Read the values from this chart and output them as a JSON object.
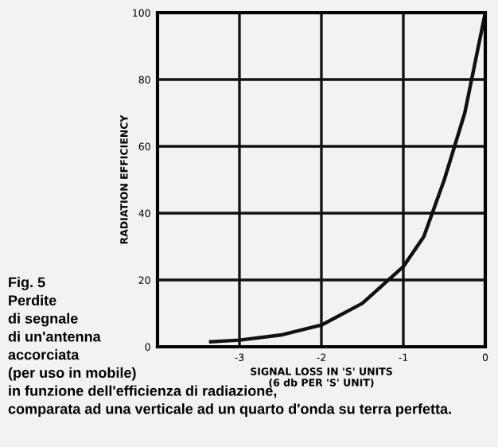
{
  "chart_data": {
    "type": "line",
    "xlabel": "SIGNAL LOSS IN 'S' UNITS\n(6 db PER 'S' UNIT)",
    "ylabel": "RADIATION EFFICIENCY",
    "x": [
      -3.35,
      -3,
      -2.5,
      -2,
      -1.5,
      -1,
      -0.75,
      -0.5,
      -0.25,
      0
    ],
    "series": [
      {
        "color": "#111111",
        "values": [
          1.5,
          2,
          3.5,
          6.5,
          13,
          24,
          33,
          50,
          70,
          100
        ]
      }
    ],
    "xlim": [
      -4,
      0
    ],
    "xticks": [
      {
        "value": -4,
        "label": null
      },
      -3,
      -2,
      -1,
      0
    ],
    "ylim": [
      0,
      100
    ],
    "yticks": [
      0,
      20,
      40,
      60,
      80,
      100
    ],
    "grid": true,
    "marker": "none",
    "line_style": "solid",
    "annotations": [
      "Fig. 5\nPerdite\ndi segnale\ndi un'antenna\naccorciata\n(per uso in mobile)\nin funzione dell'efficienza di radiazione,\ncomparata ad una verticale ad un quarto d'onda su terra perfetta."
    ]
  }
}
